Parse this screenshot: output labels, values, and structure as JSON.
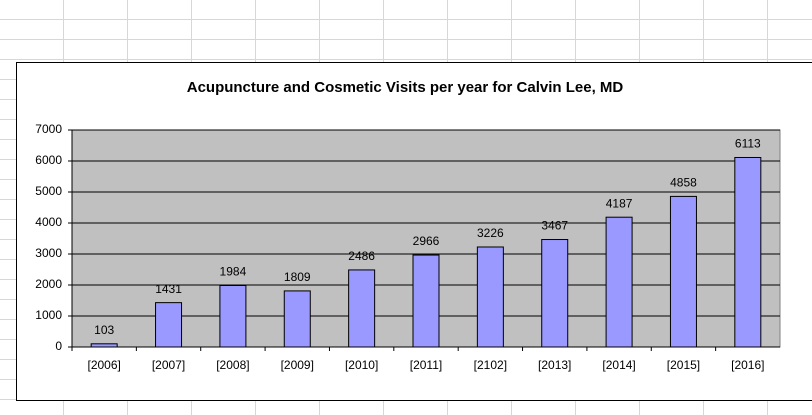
{
  "chart_data": {
    "type": "bar",
    "title": "Acupuncture and Cosmetic Visits per year for Calvin Lee, MD",
    "categories": [
      "[2006]",
      "[2007]",
      "[2008]",
      "[2009]",
      "[2010]",
      "[2011]",
      "[2102]",
      "[2013]",
      "[2014]",
      "[2015]",
      "[2016]"
    ],
    "values": [
      103,
      1431,
      1984,
      1809,
      2486,
      2966,
      3226,
      3467,
      4187,
      4858,
      6113
    ],
    "color": "#9999ff",
    "ylim": [
      0,
      7000
    ],
    "yticks": [
      0,
      1000,
      2000,
      3000,
      4000,
      5000,
      6000,
      7000
    ],
    "grid": true
  }
}
